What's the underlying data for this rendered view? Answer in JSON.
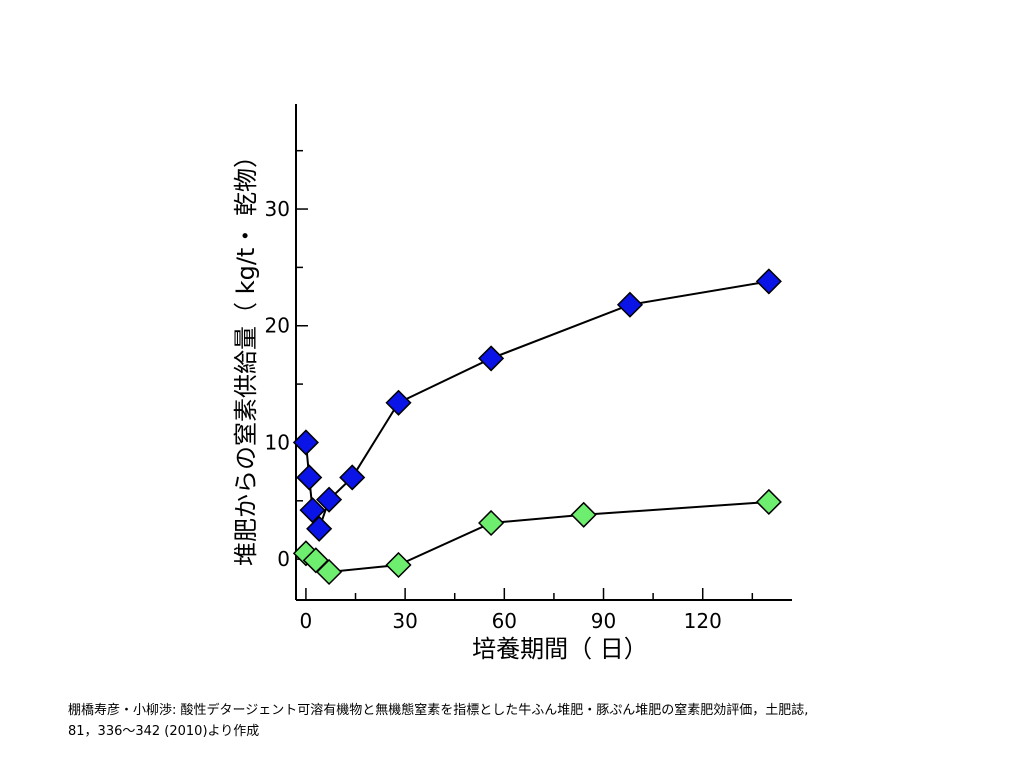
{
  "chart_data": {
    "type": "line",
    "xlabel": "培養期間（ 日）",
    "ylabel": "堆肥からの窒素供給量（ kg/t・ 乾物）",
    "xlim": [
      -3,
      147
    ],
    "ylim": [
      -3.5,
      39
    ],
    "xticks": [
      0,
      30,
      60,
      90,
      120
    ],
    "yticks": [
      0,
      10,
      20,
      30
    ],
    "grid": false,
    "series": [
      {
        "color": "#0a14e6",
        "marker": "diamond",
        "x": [
          0,
          1,
          2,
          4,
          7,
          14,
          28,
          56,
          98,
          140
        ],
        "y": [
          10,
          7,
          4.2,
          2.6,
          5.1,
          7,
          13.4,
          17.2,
          21.8,
          23.8
        ]
      },
      {
        "color": "#6eee6e",
        "marker": "diamond",
        "x": [
          0,
          3,
          7,
          28,
          56,
          84,
          140
        ],
        "y": [
          0.5,
          -0.1,
          -1.1,
          -0.5,
          3.1,
          3.8,
          4.9
        ]
      }
    ]
  },
  "caption": {
    "line1": "棚橋寿彦・小柳渉: 酸性デタージェント可溶有機物と無機態窒素を指標とした牛ふん堆肥・豚ぷん堆肥の窒素肥効評価，土肥誌,",
    "line2": "81，336～342 (2010)より作成"
  },
  "colors": {
    "axis": "#000000",
    "line": "#000000",
    "marker_stroke": "#000000"
  }
}
